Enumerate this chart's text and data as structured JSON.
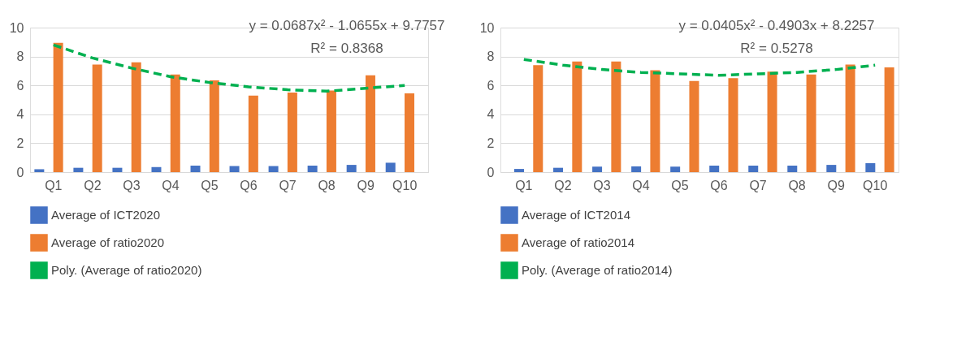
{
  "chart_data": [
    {
      "type": "bar",
      "categories": [
        "Q1",
        "Q2",
        "Q3",
        "Q4",
        "Q5",
        "Q6",
        "Q7",
        "Q8",
        "Q9",
        "Q10"
      ],
      "series": [
        {
          "name": "Average of ICT2020",
          "color": "#4472c4",
          "values": [
            0.2,
            0.3,
            0.3,
            0.35,
            0.45,
            0.42,
            0.42,
            0.45,
            0.5,
            0.65
          ]
        },
        {
          "name": "Average of ratio2020",
          "color": "#ed7d31",
          "values": [
            8.95,
            7.45,
            7.6,
            6.75,
            6.35,
            5.3,
            5.5,
            5.65,
            6.7,
            5.45
          ]
        },
        {
          "name": "Poly. (Average of ratio2020)",
          "color": "#00b050",
          "type": "line",
          "line_style": "dashed",
          "values": [
            8.8,
            7.9,
            7.2,
            6.6,
            6.2,
            5.9,
            5.7,
            5.6,
            5.8,
            6.0
          ]
        }
      ],
      "ylim": [
        0,
        10
      ],
      "yticks": [
        0,
        2,
        4,
        6,
        8,
        10
      ],
      "grid": "y",
      "legend": "bottom",
      "annotations": [
        "y = 0.0687x² - 1.0655x + 9.7757",
        "R² = 0.8368"
      ]
    },
    {
      "type": "bar",
      "categories": [
        "Q1",
        "Q2",
        "Q3",
        "Q4",
        "Q5",
        "Q6",
        "Q7",
        "Q8",
        "Q9",
        "Q10"
      ],
      "series": [
        {
          "name": "Average of ICT2014",
          "color": "#4472c4",
          "values": [
            0.22,
            0.3,
            0.38,
            0.4,
            0.38,
            0.45,
            0.45,
            0.45,
            0.5,
            0.62
          ]
        },
        {
          "name": "Average of ratio2014",
          "color": "#ed7d31",
          "values": [
            7.4,
            7.65,
            7.65,
            7.05,
            6.3,
            6.5,
            6.95,
            6.75,
            7.45,
            7.25
          ]
        },
        {
          "name": "Poly. (Average of ratio2014)",
          "color": "#00b050",
          "type": "line",
          "line_style": "dashed",
          "values": [
            7.8,
            7.4,
            7.1,
            6.9,
            6.8,
            6.7,
            6.8,
            6.9,
            7.1,
            7.4
          ]
        }
      ],
      "ylim": [
        0,
        10
      ],
      "yticks": [
        0,
        2,
        4,
        6,
        8,
        10
      ],
      "grid": "y",
      "legend": "bottom",
      "annotations": [
        "y = 0.0405x² - 0.4903x + 8.2257",
        "R² = 0.5278"
      ]
    }
  ]
}
